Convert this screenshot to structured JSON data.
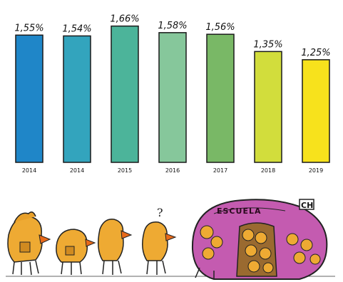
{
  "chart_data": {
    "type": "bar",
    "categories": [
      "2014",
      "2014",
      "2015",
      "2016",
      "2017",
      "2018",
      "2019"
    ],
    "values": [
      1.55,
      1.54,
      1.66,
      1.58,
      1.56,
      1.35,
      1.25
    ],
    "value_labels": [
      "1,55%",
      "1,54%",
      "1,66%",
      "1,58%",
      "1,56%",
      "1,35%",
      "1,25%"
    ],
    "bar_colors": [
      "#1f86c8",
      "#33a4bd",
      "#4cb49a",
      "#86c79b",
      "#79b866",
      "#d2dd3c",
      "#f7e21c"
    ],
    "ylim": [
      0,
      1.7
    ]
  },
  "illustration": {
    "school_label": "ESCUELA",
    "sign_label": "CH",
    "question_mark": "?"
  }
}
